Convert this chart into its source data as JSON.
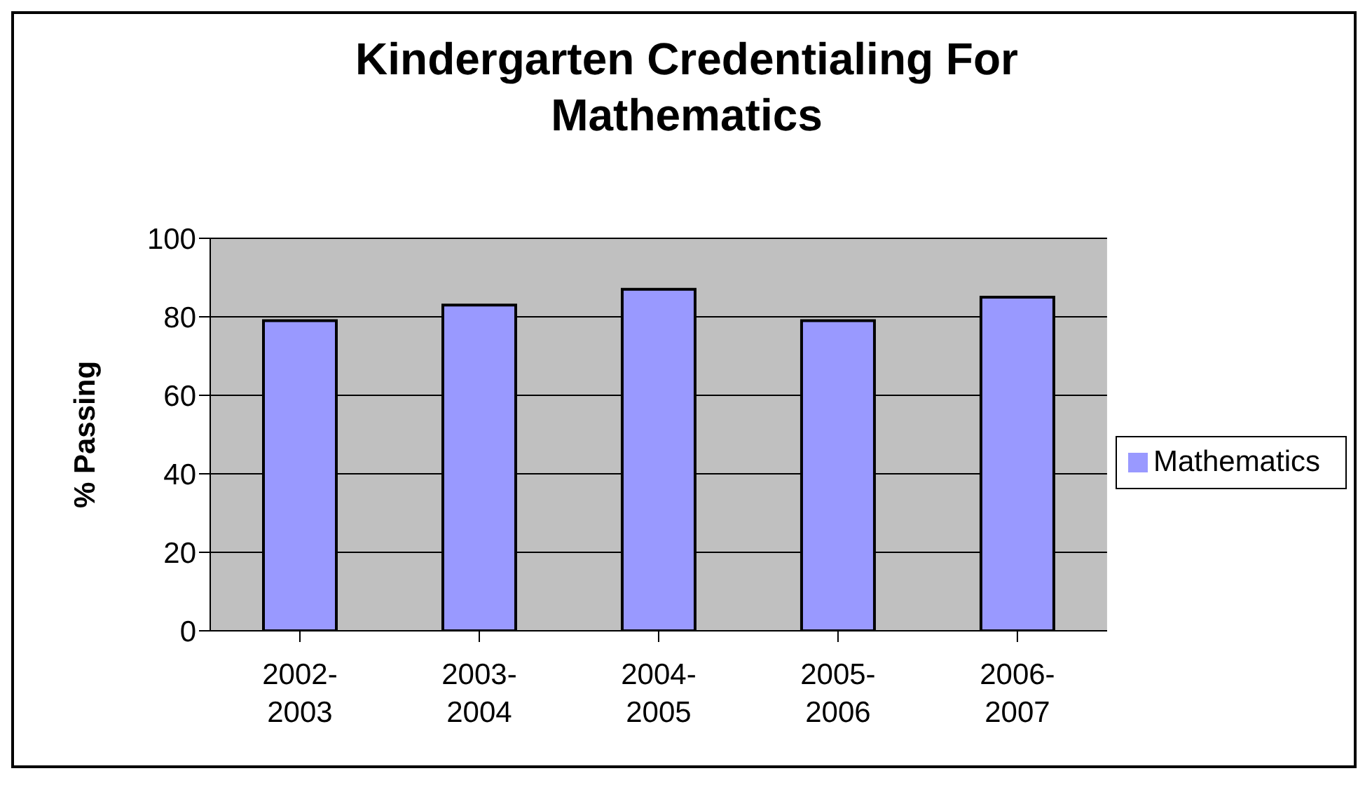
{
  "chart_data": {
    "type": "bar",
    "title": "Kindergarten Credentialing For Mathematics",
    "ylabel": "% Passing",
    "categories": [
      "2002-2003",
      "2003-2004",
      "2004-2005",
      "2005-2006",
      "2006-2007"
    ],
    "series": [
      {
        "name": "Mathematics",
        "color": "#9999ff",
        "values": [
          79,
          83,
          87,
          79,
          85
        ]
      }
    ],
    "ylim": [
      0,
      100
    ],
    "yticks": [
      0,
      20,
      40,
      60,
      80,
      100
    ],
    "grid": "y",
    "legend": "right"
  }
}
